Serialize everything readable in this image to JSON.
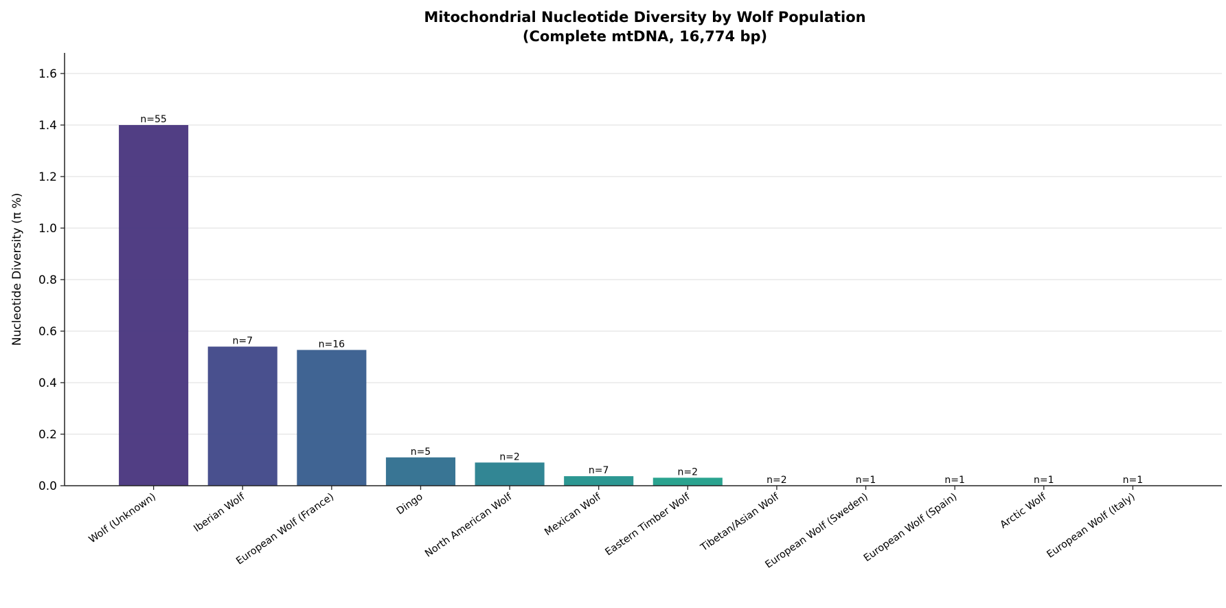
{
  "chart_data": {
    "type": "bar",
    "title": "Mitochondrial Nucleotide Diversity by Wolf Population",
    "subtitle": "(Complete mtDNA, 16,774 bp)",
    "xlabel": "",
    "ylabel": "Nucleotide Diversity (π %)",
    "ylim": [
      0,
      1.68
    ],
    "yticks": [
      "0.0",
      "0.2",
      "0.4",
      "0.6",
      "0.8",
      "1.0",
      "1.2",
      "1.4",
      "1.6"
    ],
    "grid": "horizontal",
    "categories": [
      "Wolf (Unknown)",
      "Iberian Wolf",
      "European Wolf (France)",
      "Dingo",
      "North American Wolf",
      "Mexican Wolf",
      "Eastern Timber Wolf",
      "Tibetan/Asian Wolf",
      "European Wolf (Sweden)",
      "European Wolf (Spain)",
      "Arctic Wolf",
      "European Wolf (Italy)"
    ],
    "values": [
      1.4,
      0.54,
      0.527,
      0.11,
      0.09,
      0.037,
      0.031,
      0,
      0,
      0,
      0,
      0
    ],
    "labels": [
      "n=55",
      "n=7",
      "n=16",
      "n=5",
      "n=2",
      "n=7",
      "n=2",
      "n=2",
      "n=1",
      "n=1",
      "n=1",
      "n=1"
    ],
    "colors": [
      "#48347d",
      "#3f4788",
      "#365c8d",
      "#2e6e8e",
      "#277f8e",
      "#21918c",
      "#1f9e89",
      "#22a884",
      "#35b779",
      "#54c568",
      "#7ad151",
      "#a5db36"
    ]
  }
}
